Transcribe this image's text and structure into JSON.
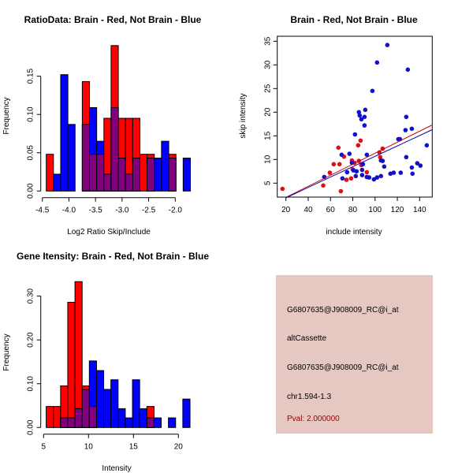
{
  "colors": {
    "red": "#ff0000",
    "blue": "#0000ff",
    "overlap": "#800080",
    "red_point": "#dd1111",
    "blue_point": "#1111cc",
    "red_line": "#cc0000",
    "blue_line": "#0000aa",
    "panel_bg": "#e6c8c2",
    "pval": "#a00000"
  },
  "chart_data": [
    {
      "type": "bar",
      "title": "RatioData: Brain - Red, Not Brain - Blue",
      "xlabel": "Log2 Ratio Skip/Include",
      "ylabel": "Frequency",
      "bin_start": -4.426,
      "bin_width": 0.1355,
      "xticks": [
        "-4.5",
        "-4.0",
        "-3.5",
        "-3.0",
        "-2.5",
        "-2.0"
      ],
      "xtick_values": [
        -4.5,
        -4.0,
        -3.5,
        -3.0,
        -2.5,
        -2.0
      ],
      "yticks": [
        "0.00",
        "0.05",
        "0.10",
        "0.15"
      ],
      "ytick_values": [
        0,
        0.05,
        0.1,
        0.15
      ],
      "series": [
        {
          "name": "Brain",
          "color": "red",
          "values": [
            0.048,
            0,
            0,
            0,
            0,
            0.143,
            0.048,
            0.048,
            0.095,
            0.19,
            0.095,
            0.095,
            0.095,
            0.048,
            0.048,
            0,
            0,
            0.048,
            0,
            0
          ]
        },
        {
          "name": "Not Brain",
          "color": "blue",
          "values": [
            0,
            0.022,
            0.152,
            0.087,
            0,
            0.087,
            0.109,
            0.065,
            0.022,
            0.109,
            0.043,
            0.022,
            0.043,
            0,
            0.043,
            0.043,
            0.065,
            0.043,
            0,
            0.043
          ]
        }
      ]
    },
    {
      "type": "scatter",
      "title": "Brain - Red, Not Brain - Blue",
      "xlabel": "include intensity",
      "ylabel": "skip intensity",
      "xlim": [
        12.2,
        151.3
      ],
      "ylim": [
        2.0,
        36.0
      ],
      "xticks": [
        "20",
        "40",
        "60",
        "80",
        "100",
        "120",
        "140"
      ],
      "xtick_values": [
        20,
        40,
        60,
        80,
        100,
        120,
        140
      ],
      "yticks": [
        "5",
        "10",
        "15",
        "20",
        "25",
        "30",
        "35"
      ],
      "ytick_values": [
        5,
        10,
        15,
        20,
        25,
        30,
        35
      ],
      "series": [
        {
          "name": "Brain",
          "color": "red_point",
          "line_color": "red_line",
          "fit": [
            [
              20,
              2.0
            ],
            [
              151.3,
              17.3
            ]
          ],
          "points": [
            [
              16.9,
              3.8
            ],
            [
              53.5,
              4.5
            ],
            [
              59.4,
              7.2
            ],
            [
              62.9,
              9.0
            ],
            [
              67.1,
              12.5
            ],
            [
              68.1,
              9.0
            ],
            [
              69.3,
              3.3
            ],
            [
              72.1,
              10.6
            ],
            [
              74.3,
              5.7
            ],
            [
              78.5,
              6.0
            ],
            [
              79.2,
              9.8
            ],
            [
              79.9,
              7.9
            ],
            [
              81.5,
              9.3
            ],
            [
              84.8,
              13.0
            ],
            [
              85.5,
              9.7
            ],
            [
              87.0,
              14.0
            ],
            [
              87.7,
              8.8
            ],
            [
              92.6,
              7.3
            ],
            [
              103.9,
              11.5
            ],
            [
              104.6,
              10.5
            ],
            [
              106.8,
              12.3
            ]
          ]
        },
        {
          "name": "Not Brain",
          "color": "blue_point",
          "line_color": "blue_line",
          "fit": [
            [
              20,
              1.9
            ],
            [
              151.3,
              16.3
            ]
          ],
          "points": [
            [
              54.4,
              6.3
            ],
            [
              70.0,
              11.0
            ],
            [
              70.7,
              6.0
            ],
            [
              74.9,
              7.3
            ],
            [
              77.0,
              11.2
            ],
            [
              79.2,
              9.3
            ],
            [
              80.6,
              7.7
            ],
            [
              82.0,
              15.3
            ],
            [
              82.7,
              6.5
            ],
            [
              83.4,
              7.5
            ],
            [
              85.5,
              20.0
            ],
            [
              86.2,
              19.3
            ],
            [
              87.7,
              18.5
            ],
            [
              88.4,
              7.8
            ],
            [
              88.4,
              6.7
            ],
            [
              89.1,
              9.0
            ],
            [
              90.5,
              17.2
            ],
            [
              90.5,
              19.0
            ],
            [
              91.2,
              20.5
            ],
            [
              92.6,
              11.0
            ],
            [
              92.6,
              6.3
            ],
            [
              94.7,
              6.2
            ],
            [
              97.6,
              24.5
            ],
            [
              99.0,
              5.8
            ],
            [
              101.8,
              30.5
            ],
            [
              101.8,
              6.2
            ],
            [
              105.3,
              6.5
            ],
            [
              105.3,
              9.8
            ],
            [
              106.8,
              9.7
            ],
            [
              108.2,
              8.5
            ],
            [
              111.0,
              34.2
            ],
            [
              113.8,
              7.0
            ],
            [
              116.7,
              7.2
            ],
            [
              120.9,
              14.3
            ],
            [
              122.3,
              14.3
            ],
            [
              123.0,
              7.2
            ],
            [
              127.3,
              16.2
            ],
            [
              128.0,
              19.0
            ],
            [
              128.0,
              10.5
            ],
            [
              129.4,
              29.0
            ],
            [
              133.0,
              8.3
            ],
            [
              133.0,
              16.5
            ],
            [
              133.6,
              7.0
            ],
            [
              137.9,
              9.2
            ],
            [
              140.7,
              8.7
            ],
            [
              146.4,
              13.0
            ]
          ]
        }
      ]
    },
    {
      "type": "bar",
      "title": "Gene Itensity: Brain - Red, Not Brain - Blue",
      "xlabel": "Intensity",
      "ylabel": "Frequency",
      "bin_start": 5.29,
      "bin_width": 0.8,
      "xticks": [
        "5",
        "10",
        "15",
        "20"
      ],
      "xtick_values": [
        5,
        10,
        15,
        20
      ],
      "yticks": [
        "0.00",
        "0.10",
        "0.20",
        "0.30"
      ],
      "ytick_values": [
        0,
        0.1,
        0.2,
        0.3
      ],
      "series": [
        {
          "name": "Brain",
          "color": "red",
          "values": [
            0.048,
            0.048,
            0.095,
            0.286,
            0.333,
            0.095,
            0.048,
            0,
            0,
            0,
            0,
            0,
            0,
            0,
            0.048,
            0,
            0,
            0,
            0,
            0
          ]
        },
        {
          "name": "Not Brain",
          "color": "blue",
          "values": [
            0,
            0,
            0.022,
            0.022,
            0.043,
            0.087,
            0.152,
            0.13,
            0.087,
            0.109,
            0.043,
            0.022,
            0.109,
            0.043,
            0.022,
            0.022,
            0,
            0.022,
            0,
            0.065
          ]
        }
      ]
    }
  ],
  "info_panel": {
    "probe_id": "G6807635@J908009_RC@i_at",
    "event_type": "altCassette",
    "probe_id_2": "G6807635@J908009_RC@i_at",
    "location": "chr1.594-1.3",
    "pval": "Pval: 2.000000"
  }
}
